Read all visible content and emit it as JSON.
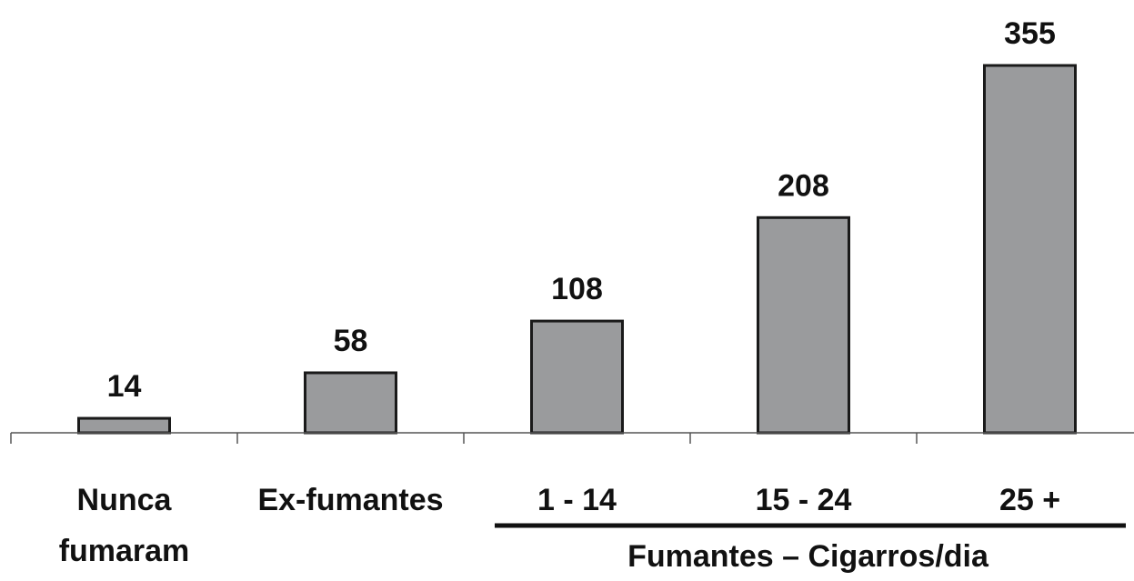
{
  "chart_data": {
    "type": "bar",
    "categories": [
      [
        "Nunca",
        "fumaram"
      ],
      [
        "Ex-fumantes"
      ],
      [
        "1 - 14"
      ],
      [
        "15 - 24"
      ],
      [
        "25 +"
      ]
    ],
    "values": [
      14,
      58,
      108,
      208,
      355
    ],
    "data_labels": [
      "14",
      "58",
      "108",
      "208",
      "355"
    ],
    "group_label": "Fumantes – Cigarros/dia",
    "group_categories": [
      2,
      4
    ],
    "title": "",
    "xlabel": "",
    "ylabel": "",
    "ylim": [
      0,
      355
    ],
    "grid": false,
    "legend": "none",
    "bar_color": "#9a9b9d",
    "bar_edge_color": "#1a1a1a"
  }
}
